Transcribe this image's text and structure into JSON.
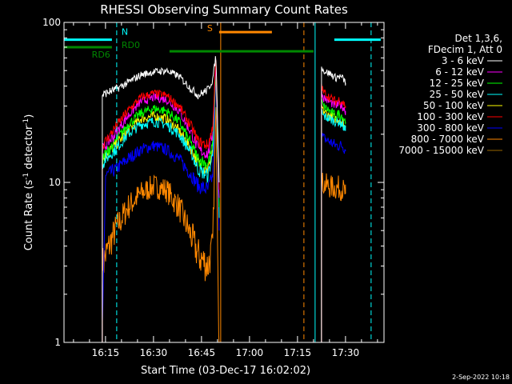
{
  "chart_data": {
    "type": "line",
    "title": "RHESSI Observing Summary Count Rates",
    "xlabel": "Start Time (03-Dec-17 16:02:02)",
    "ylabel_main": "Count Rate (s",
    "ylabel_sup1": "-1",
    "ylabel_mid": " detector",
    "ylabel_sup2": "-1",
    "ylabel_end": ")",
    "yscale": "log",
    "xlim": [
      2.03,
      102.03
    ],
    "ylim": [
      1,
      100
    ],
    "x_ticks": [
      {
        "v": 15,
        "label": "16:15"
      },
      {
        "v": 30,
        "label": "16:30"
      },
      {
        "v": 45,
        "label": "16:45"
      },
      {
        "v": 60,
        "label": "17:00"
      },
      {
        "v": 75,
        "label": "17:15"
      },
      {
        "v": 90,
        "label": "17:30"
      }
    ],
    "y_ticks": [
      {
        "v": 1,
        "label": "1"
      },
      {
        "v": 10,
        "label": "10"
      },
      {
        "v": 100,
        "label": "100"
      }
    ],
    "legend_header": [
      "Det 1,3,6,",
      "FDecim 1, Att 0"
    ],
    "legend_position": "right",
    "series": [
      {
        "name": "3 - 6 keV",
        "color": "#ffffff",
        "segments": [
          {
            "x": [
              14,
              15,
              18,
              22,
              26,
              30,
              34,
              38,
              42,
              44,
              47,
              48.5,
              49.5,
              50.5
            ],
            "y": [
              35,
              36,
              38,
              42,
              47,
              49,
              50,
              46,
              38,
              35,
              38,
              44,
              62,
              10
            ]
          },
          {
            "x": [
              82.5,
              83,
              85,
              87,
              88,
              89,
              90
            ],
            "y": [
              55,
              50,
              48,
              45,
              46,
              45,
              42
            ]
          }
        ]
      },
      {
        "name": "6 - 12 keV",
        "color": "#ff00ff",
        "segments": [
          {
            "x": [
              14,
              15,
              18,
              22,
              26,
              30,
              34,
              38,
              42,
              44,
              47,
              48.5,
              49.5,
              50.5
            ],
            "y": [
              16,
              17,
              20,
              26,
              32,
              34,
              33,
              28,
              20,
              16,
              15,
              20,
              58,
              8
            ]
          },
          {
            "x": [
              82.5,
              83,
              85,
              87,
              88,
              89,
              90
            ],
            "y": [
              37,
              34,
              32,
              30,
              31,
              30,
              28
            ]
          }
        ]
      },
      {
        "name": "12 - 25 keV",
        "color": "#00ff00",
        "segments": [
          {
            "x": [
              14,
              15,
              18,
              22,
              26,
              30,
              34,
              38,
              42,
              44,
              47,
              48.5,
              49.5,
              50.5
            ],
            "y": [
              14,
              15,
              18,
              23,
              27,
              29,
              28,
              24,
              17,
              14,
              13,
              17,
              55,
              7
            ]
          },
          {
            "x": [
              82.5,
              83,
              85,
              87,
              88,
              89,
              90
            ],
            "y": [
              32,
              30,
              28,
              26,
              27,
              26,
              24
            ]
          }
        ]
      },
      {
        "name": "25 - 50 keV",
        "color": "#00ffff",
        "segments": [
          {
            "x": [
              14,
              15,
              18,
              22,
              26,
              30,
              34,
              38,
              42,
              44,
              47,
              48.5,
              49.5,
              50.5
            ],
            "y": [
              13,
              14,
              16,
              20,
              23,
              24,
              23,
              20,
              15,
              12,
              11,
              15,
              52,
              6
            ]
          },
          {
            "x": [
              82.5,
              83,
              85,
              87,
              88,
              89,
              90
            ],
            "y": [
              28,
              26,
              25,
              24,
              24,
              23,
              21
            ]
          }
        ]
      },
      {
        "name": "50 - 100 keV",
        "color": "#ffff00",
        "segments": [
          {
            "x": [
              14,
              15,
              18,
              22,
              26,
              30,
              34,
              38,
              42,
              44,
              47,
              48.5,
              49.5,
              50.5
            ],
            "y": [
              14,
              15,
              17,
              21,
              25,
              26,
              25,
              21,
              16,
              13,
              12,
              16,
              50,
              6
            ]
          },
          {
            "x": [
              82.5,
              83,
              85,
              87,
              88,
              89,
              90
            ],
            "y": [
              30,
              28,
              26,
              25,
              25,
              24,
              22
            ]
          }
        ]
      },
      {
        "name": "100 - 300 keV",
        "color": "#ff0000",
        "segments": [
          {
            "x": [
              14,
              15,
              18,
              22,
              26,
              30,
              34,
              38,
              42,
              44,
              47,
              48.5,
              49.5,
              50.5
            ],
            "y": [
              17,
              18,
              22,
              28,
              34,
              36,
              35,
              30,
              22,
              18,
              17,
              22,
              60,
              9
            ]
          },
          {
            "x": [
              82.5,
              83,
              85,
              87,
              88,
              89,
              90
            ],
            "y": [
              40,
              37,
              34,
              32,
              33,
              32,
              30
            ]
          }
        ]
      },
      {
        "name": "300 - 800 keV",
        "color": "#0000ff",
        "segments": [
          {
            "x": [
              14,
              15,
              18,
              22,
              26,
              30,
              34,
              38,
              42,
              44,
              47,
              48.5,
              49.5,
              50.5
            ],
            "y": [
              1,
              11,
              12,
              14,
              16,
              17,
              16,
              14,
              11,
              9.5,
              9,
              11,
              45,
              5
            ]
          },
          {
            "x": [
              82.5,
              83,
              85,
              87,
              88,
              89,
              90
            ],
            "y": [
              20,
              19,
              18,
              17,
              17,
              17,
              16
            ]
          }
        ]
      },
      {
        "name": "800 - 7000 keV",
        "color": "#ff8800",
        "segments": [
          {
            "x": [
              14,
              15,
              18,
              22,
              26,
              30,
              34,
              38,
              42,
              44,
              47,
              48.5,
              49.5,
              50.5
            ],
            "y": [
              3,
              3.5,
              5,
              7,
              8.5,
              9.5,
              9,
              7,
              4.5,
              3.5,
              3,
              4,
              30,
              1
            ]
          },
          {
            "x": [
              82.5,
              83,
              85,
              87,
              88,
              89,
              90
            ],
            "y": [
              10,
              9.8,
              9.4,
              9.2,
              9.3,
              9.1,
              8.5
            ]
          }
        ]
      },
      {
        "name": "7000 - 15000 keV",
        "color": "#996600",
        "segments": []
      }
    ],
    "annotations": [
      {
        "label": "N",
        "color": "#00ffff",
        "segments": [
          [
            2.03,
            17
          ],
          [
            86.5,
            101
          ]
        ],
        "y": 78
      },
      {
        "label": "S",
        "color": "#ff8800",
        "segments": [
          [
            50.5,
            67
          ]
        ],
        "y": 87
      },
      {
        "label": "RD0",
        "color": "#008800",
        "segments": [
          [
            35,
            80
          ]
        ],
        "y": 66
      },
      {
        "label": "RD6",
        "color": "#008800",
        "segments": [
          [
            2.03,
            17
          ]
        ],
        "y": 70
      }
    ],
    "vlines": [
      {
        "x": 18.5,
        "color": "#00ffff",
        "style": "dashed"
      },
      {
        "x": 51,
        "color": "#ff8800",
        "style": "solid"
      },
      {
        "x": 77,
        "color": "#ff8800",
        "style": "dashed"
      },
      {
        "x": 80.5,
        "color": "#00ffff",
        "style": "solid"
      },
      {
        "x": 98,
        "color": "#00ffff",
        "style": "dashed"
      }
    ]
  },
  "footer": {
    "timestamp": "2-Sep-2022 10:18"
  }
}
